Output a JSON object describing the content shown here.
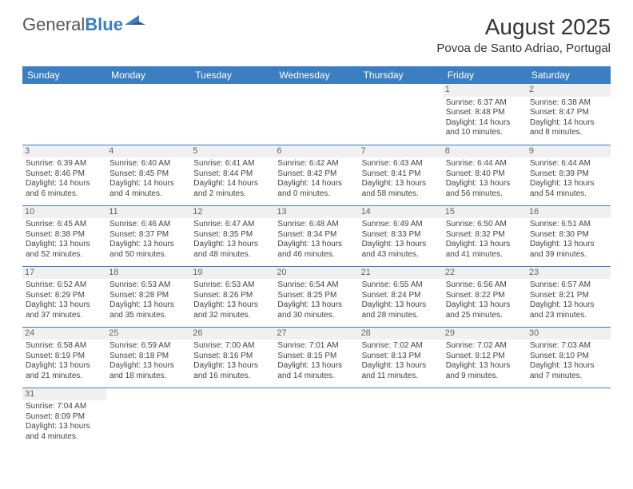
{
  "logo": {
    "text1": "General",
    "text2": "Blue"
  },
  "title": "August 2025",
  "location": "Povoa de Santo Adriao, Portugal",
  "colors": {
    "header_bg": "#3b7ec2",
    "border": "#3b7ec2",
    "daynum_bg": "#f0f0f0"
  },
  "weekdays": [
    "Sunday",
    "Monday",
    "Tuesday",
    "Wednesday",
    "Thursday",
    "Friday",
    "Saturday"
  ],
  "weeks": [
    [
      null,
      null,
      null,
      null,
      null,
      {
        "n": "1",
        "sr": "Sunrise: 6:37 AM",
        "ss": "Sunset: 8:48 PM",
        "d1": "Daylight: 14 hours",
        "d2": "and 10 minutes."
      },
      {
        "n": "2",
        "sr": "Sunrise: 6:38 AM",
        "ss": "Sunset: 8:47 PM",
        "d1": "Daylight: 14 hours",
        "d2": "and 8 minutes."
      }
    ],
    [
      {
        "n": "3",
        "sr": "Sunrise: 6:39 AM",
        "ss": "Sunset: 8:46 PM",
        "d1": "Daylight: 14 hours",
        "d2": "and 6 minutes."
      },
      {
        "n": "4",
        "sr": "Sunrise: 6:40 AM",
        "ss": "Sunset: 8:45 PM",
        "d1": "Daylight: 14 hours",
        "d2": "and 4 minutes."
      },
      {
        "n": "5",
        "sr": "Sunrise: 6:41 AM",
        "ss": "Sunset: 8:44 PM",
        "d1": "Daylight: 14 hours",
        "d2": "and 2 minutes."
      },
      {
        "n": "6",
        "sr": "Sunrise: 6:42 AM",
        "ss": "Sunset: 8:42 PM",
        "d1": "Daylight: 14 hours",
        "d2": "and 0 minutes."
      },
      {
        "n": "7",
        "sr": "Sunrise: 6:43 AM",
        "ss": "Sunset: 8:41 PM",
        "d1": "Daylight: 13 hours",
        "d2": "and 58 minutes."
      },
      {
        "n": "8",
        "sr": "Sunrise: 6:44 AM",
        "ss": "Sunset: 8:40 PM",
        "d1": "Daylight: 13 hours",
        "d2": "and 56 minutes."
      },
      {
        "n": "9",
        "sr": "Sunrise: 6:44 AM",
        "ss": "Sunset: 8:39 PM",
        "d1": "Daylight: 13 hours",
        "d2": "and 54 minutes."
      }
    ],
    [
      {
        "n": "10",
        "sr": "Sunrise: 6:45 AM",
        "ss": "Sunset: 8:38 PM",
        "d1": "Daylight: 13 hours",
        "d2": "and 52 minutes."
      },
      {
        "n": "11",
        "sr": "Sunrise: 6:46 AM",
        "ss": "Sunset: 8:37 PM",
        "d1": "Daylight: 13 hours",
        "d2": "and 50 minutes."
      },
      {
        "n": "12",
        "sr": "Sunrise: 6:47 AM",
        "ss": "Sunset: 8:35 PM",
        "d1": "Daylight: 13 hours",
        "d2": "and 48 minutes."
      },
      {
        "n": "13",
        "sr": "Sunrise: 6:48 AM",
        "ss": "Sunset: 8:34 PM",
        "d1": "Daylight: 13 hours",
        "d2": "and 46 minutes."
      },
      {
        "n": "14",
        "sr": "Sunrise: 6:49 AM",
        "ss": "Sunset: 8:33 PM",
        "d1": "Daylight: 13 hours",
        "d2": "and 43 minutes."
      },
      {
        "n": "15",
        "sr": "Sunrise: 6:50 AM",
        "ss": "Sunset: 8:32 PM",
        "d1": "Daylight: 13 hours",
        "d2": "and 41 minutes."
      },
      {
        "n": "16",
        "sr": "Sunrise: 6:51 AM",
        "ss": "Sunset: 8:30 PM",
        "d1": "Daylight: 13 hours",
        "d2": "and 39 minutes."
      }
    ],
    [
      {
        "n": "17",
        "sr": "Sunrise: 6:52 AM",
        "ss": "Sunset: 8:29 PM",
        "d1": "Daylight: 13 hours",
        "d2": "and 37 minutes."
      },
      {
        "n": "18",
        "sr": "Sunrise: 6:53 AM",
        "ss": "Sunset: 8:28 PM",
        "d1": "Daylight: 13 hours",
        "d2": "and 35 minutes."
      },
      {
        "n": "19",
        "sr": "Sunrise: 6:53 AM",
        "ss": "Sunset: 8:26 PM",
        "d1": "Daylight: 13 hours",
        "d2": "and 32 minutes."
      },
      {
        "n": "20",
        "sr": "Sunrise: 6:54 AM",
        "ss": "Sunset: 8:25 PM",
        "d1": "Daylight: 13 hours",
        "d2": "and 30 minutes."
      },
      {
        "n": "21",
        "sr": "Sunrise: 6:55 AM",
        "ss": "Sunset: 8:24 PM",
        "d1": "Daylight: 13 hours",
        "d2": "and 28 minutes."
      },
      {
        "n": "22",
        "sr": "Sunrise: 6:56 AM",
        "ss": "Sunset: 8:22 PM",
        "d1": "Daylight: 13 hours",
        "d2": "and 25 minutes."
      },
      {
        "n": "23",
        "sr": "Sunrise: 6:57 AM",
        "ss": "Sunset: 8:21 PM",
        "d1": "Daylight: 13 hours",
        "d2": "and 23 minutes."
      }
    ],
    [
      {
        "n": "24",
        "sr": "Sunrise: 6:58 AM",
        "ss": "Sunset: 8:19 PM",
        "d1": "Daylight: 13 hours",
        "d2": "and 21 minutes."
      },
      {
        "n": "25",
        "sr": "Sunrise: 6:59 AM",
        "ss": "Sunset: 8:18 PM",
        "d1": "Daylight: 13 hours",
        "d2": "and 18 minutes."
      },
      {
        "n": "26",
        "sr": "Sunrise: 7:00 AM",
        "ss": "Sunset: 8:16 PM",
        "d1": "Daylight: 13 hours",
        "d2": "and 16 minutes."
      },
      {
        "n": "27",
        "sr": "Sunrise: 7:01 AM",
        "ss": "Sunset: 8:15 PM",
        "d1": "Daylight: 13 hours",
        "d2": "and 14 minutes."
      },
      {
        "n": "28",
        "sr": "Sunrise: 7:02 AM",
        "ss": "Sunset: 8:13 PM",
        "d1": "Daylight: 13 hours",
        "d2": "and 11 minutes."
      },
      {
        "n": "29",
        "sr": "Sunrise: 7:02 AM",
        "ss": "Sunset: 8:12 PM",
        "d1": "Daylight: 13 hours",
        "d2": "and 9 minutes."
      },
      {
        "n": "30",
        "sr": "Sunrise: 7:03 AM",
        "ss": "Sunset: 8:10 PM",
        "d1": "Daylight: 13 hours",
        "d2": "and 7 minutes."
      }
    ],
    [
      {
        "n": "31",
        "sr": "Sunrise: 7:04 AM",
        "ss": "Sunset: 8:09 PM",
        "d1": "Daylight: 13 hours",
        "d2": "and 4 minutes."
      },
      null,
      null,
      null,
      null,
      null,
      null
    ]
  ]
}
